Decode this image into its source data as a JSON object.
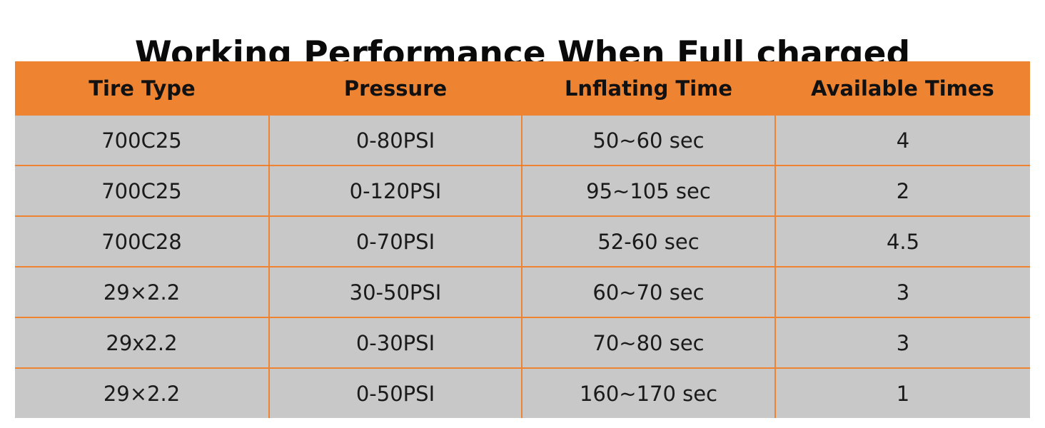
{
  "title": "Working Performance When Full charged",
  "table": {
    "headers": [
      "Tire Type",
      "Pressure",
      "Lnflating Time",
      "Available Times"
    ],
    "rows": [
      [
        "700C25",
        "0-80PSI",
        "50~60 sec",
        "4"
      ],
      [
        "700C25",
        "0-120PSI",
        "95~105 sec",
        "2"
      ],
      [
        "700C28",
        "0-70PSI",
        "52-60 sec",
        "4.5"
      ],
      [
        "29×2.2",
        "30-50PSI",
        "60~70 sec",
        "3"
      ],
      [
        "29x2.2",
        "0-30PSI",
        "70~80 sec",
        "3"
      ],
      [
        "29×2.2",
        "0-50PSI",
        "160~170 sec",
        "1"
      ]
    ]
  },
  "colors": {
    "header_bg": "#ee8432",
    "cell_bg": "#c8c8c8",
    "grid_line": "#ee8432",
    "text": "#111111"
  }
}
